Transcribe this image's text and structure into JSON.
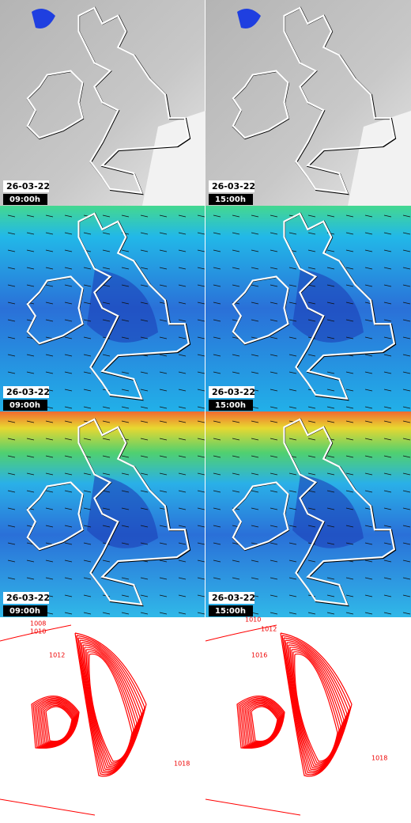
{
  "panels": [
    {
      "date": "26-03-22",
      "time": "09:00h"
    },
    {
      "date": "26-03-22",
      "time": "15:00h"
    },
    {
      "date": "26-03-22",
      "time": "09:00h"
    },
    {
      "date": "26-03-22",
      "time": "15:00h"
    },
    {
      "date": "26-03-22",
      "time": "09:00h"
    },
    {
      "date": "26-03-22",
      "time": "15:00h"
    }
  ],
  "pressure_panels": [
    {
      "labels": [
        "1008",
        "1010",
        "1012",
        "1018"
      ]
    },
    {
      "labels": [
        "1010",
        "1012",
        "1016",
        "1018"
      ]
    }
  ]
}
